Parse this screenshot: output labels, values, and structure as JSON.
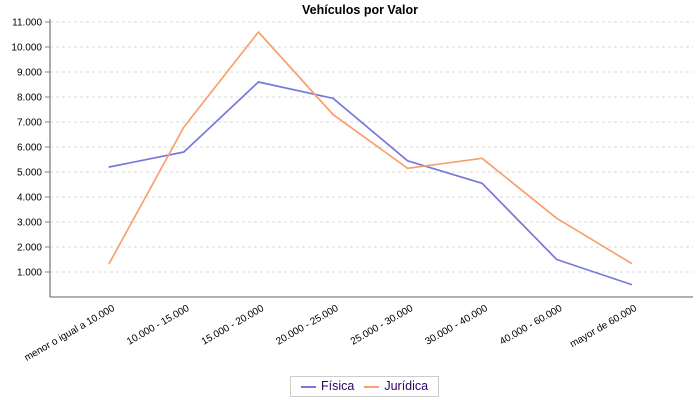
{
  "chart_data": {
    "type": "line",
    "title": "Vehículos por Valor",
    "categories": [
      "menor o igual a 10.000",
      "10.000 - 15.000",
      "15.000 - 20.000",
      "20.000 - 25.000",
      "25.000 - 30.000",
      "30.000 - 40.000",
      "40.000 - 60.000",
      "mayor de 60.000"
    ],
    "series": [
      {
        "name": "Física",
        "color": "#7878dc",
        "values": [
          5200,
          5800,
          8600,
          7950,
          5450,
          4550,
          1500,
          500
        ]
      },
      {
        "name": "Jurídica",
        "color": "#fa9f6e",
        "values": [
          1350,
          6800,
          10600,
          7300,
          5150,
          5550,
          3150,
          1350
        ]
      }
    ],
    "xlabel": "",
    "ylabel": "",
    "ylim": [
      0,
      11000
    ],
    "ytick_step": 1000,
    "ytick_labels": [
      "1.000",
      "2.000",
      "3.000",
      "4.000",
      "5.000",
      "6.000",
      "7.000",
      "8.000",
      "9.000",
      "10.000",
      "11.000"
    ],
    "grid": "horizontal-dashed",
    "legend_position": "bottom-center"
  },
  "colors": {
    "background": "#ffffff",
    "grid": "#d8d8d8",
    "axis": "#808080",
    "tick_text": "#000000",
    "title_text": "#000000",
    "legend_text": "#330066",
    "legend_border": "#cccccc"
  }
}
